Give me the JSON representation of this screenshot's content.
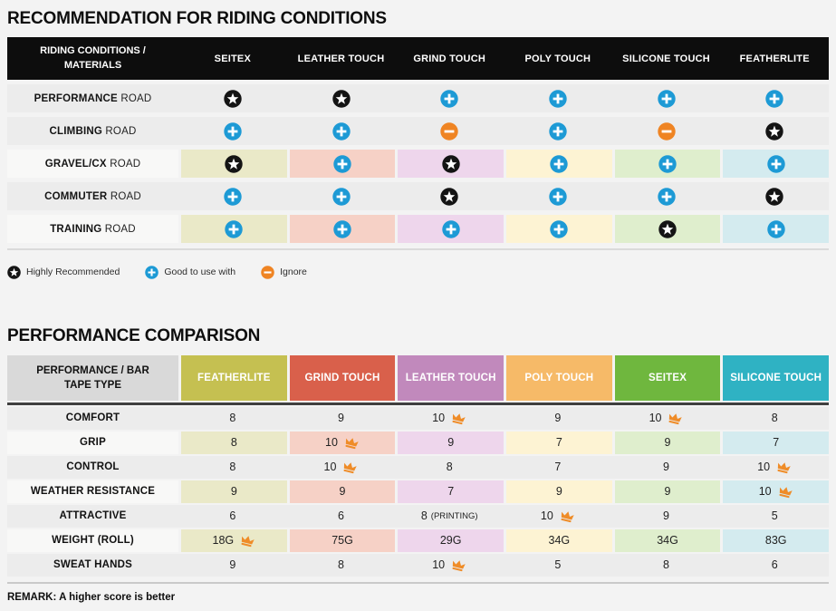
{
  "page_bg": "#f3f3f3",
  "chart_data": [
    {
      "type": "table",
      "title": "RECOMMENDATION FOR RIDING CONDITIONS",
      "row_header": "RIDING CONDITIONS / MATERIALS",
      "columns": [
        "SEITEX",
        "LEATHER TOUCH",
        "GRIND TOUCH",
        "POLY TOUCH",
        "SILICONE TOUCH",
        "FEATHERLITE"
      ],
      "column_tints": [
        "#eae9c8",
        "#f6d1c6",
        "#eed6ec",
        "#fdf3d3",
        "#dfeecd",
        "#d4ebef"
      ],
      "rows": [
        {
          "label_bold": "PERFORMANCE",
          "label_rest": "ROAD",
          "tinted": false,
          "cells": [
            "star",
            "star",
            "plus",
            "plus",
            "plus",
            "plus"
          ]
        },
        {
          "label_bold": "CLIMBING",
          "label_rest": "ROAD",
          "tinted": false,
          "cells": [
            "plus",
            "plus",
            "minus",
            "plus",
            "minus",
            "star"
          ]
        },
        {
          "label_bold": "GRAVEL/CX",
          "label_rest": "ROAD",
          "tinted": true,
          "cells": [
            "star",
            "plus",
            "star",
            "plus",
            "plus",
            "plus"
          ]
        },
        {
          "label_bold": "COMMUTER",
          "label_rest": "ROAD",
          "tinted": false,
          "cells": [
            "plus",
            "plus",
            "star",
            "plus",
            "plus",
            "star"
          ]
        },
        {
          "label_bold": "TRAINING",
          "label_rest": "ROAD",
          "tinted": true,
          "cells": [
            "plus",
            "plus",
            "plus",
            "plus",
            "star",
            "plus"
          ]
        }
      ],
      "icon_legend": [
        {
          "icon": "star",
          "label": "Highly Recommended"
        },
        {
          "icon": "plus",
          "label": "Good to use with"
        },
        {
          "icon": "minus",
          "label": "Ignore"
        }
      ],
      "icon_colors": {
        "star": "#141414",
        "plus": "#1d9ad5",
        "minus": "#ef8423"
      },
      "header_bg": "#0d0d0d"
    },
    {
      "type": "table",
      "title": "PERFORMANCE COMPARISON",
      "row_header": "PERFORMANCE / BAR TAPE TYPE",
      "columns": [
        {
          "label": "FEATHERLITE",
          "color": "#c5c051",
          "tint": "#eae9c8"
        },
        {
          "label": "GRIND TOUCH",
          "color": "#d9604b",
          "tint": "#f6d1c6"
        },
        {
          "label": "LEATHER TOUCH",
          "color": "#c189bc",
          "tint": "#eed6ec"
        },
        {
          "label": "POLY TOUCH",
          "color": "#f6ba68",
          "tint": "#fdf3d3"
        },
        {
          "label": "SEITEX",
          "color": "#6fb73e",
          "tint": "#dfeecd"
        },
        {
          "label": "SILICONE TOUCH",
          "color": "#2fb2c3",
          "tint": "#d4ebef"
        }
      ],
      "rows": [
        {
          "label": "COMFORT",
          "tinted": false,
          "cells": [
            {
              "v": "8"
            },
            {
              "v": "9"
            },
            {
              "v": "10",
              "crown": true
            },
            {
              "v": "9"
            },
            {
              "v": "10",
              "crown": true
            },
            {
              "v": "8"
            }
          ]
        },
        {
          "label": "GRIP",
          "tinted": true,
          "cells": [
            {
              "v": "8"
            },
            {
              "v": "10",
              "crown": true
            },
            {
              "v": "9"
            },
            {
              "v": "7"
            },
            {
              "v": "9"
            },
            {
              "v": "7"
            }
          ]
        },
        {
          "label": "CONTROL",
          "tinted": false,
          "cells": [
            {
              "v": "8"
            },
            {
              "v": "10",
              "crown": true
            },
            {
              "v": "8"
            },
            {
              "v": "7"
            },
            {
              "v": "9"
            },
            {
              "v": "10",
              "crown": true
            }
          ]
        },
        {
          "label": "WEATHER RESISTANCE",
          "tinted": true,
          "cells": [
            {
              "v": "9"
            },
            {
              "v": "9"
            },
            {
              "v": "7"
            },
            {
              "v": "9"
            },
            {
              "v": "9"
            },
            {
              "v": "10",
              "crown": true
            }
          ]
        },
        {
          "label": "ATTRACTIVE",
          "tinted": false,
          "cells": [
            {
              "v": "6"
            },
            {
              "v": "6"
            },
            {
              "v": "8",
              "note": "(PRINTING)"
            },
            {
              "v": "10",
              "crown": true
            },
            {
              "v": "9"
            },
            {
              "v": "5"
            }
          ]
        },
        {
          "label": "WEIGHT (ROLL)",
          "tinted": true,
          "cells": [
            {
              "v": "18G",
              "crown": true
            },
            {
              "v": "75G"
            },
            {
              "v": "29G"
            },
            {
              "v": "34G"
            },
            {
              "v": "34G"
            },
            {
              "v": "83G"
            }
          ]
        },
        {
          "label": "SWEAT HANDS",
          "tinted": false,
          "cells": [
            {
              "v": "9"
            },
            {
              "v": "8"
            },
            {
              "v": "10",
              "crown": true
            },
            {
              "v": "5"
            },
            {
              "v": "8"
            },
            {
              "v": "6"
            }
          ]
        }
      ],
      "remark": "REMARK: A higher score is better",
      "crown_color": "#ef8c28",
      "crown_meaning": "best score",
      "label_header_bg": "#d9d9d9"
    }
  ]
}
